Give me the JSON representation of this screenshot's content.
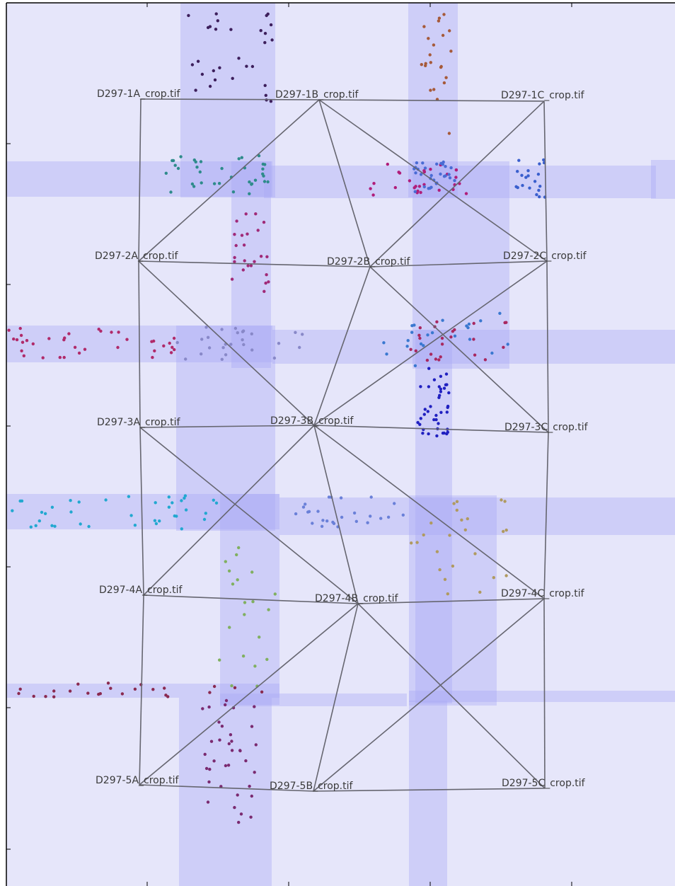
{
  "figure": {
    "background": "#e6e6fa",
    "band_color": "#a8a8f5",
    "edge_color": "#666670",
    "frame_color": "#000000"
  },
  "nodes": [
    {
      "id": "1A",
      "label": "D297-1A_crop.tif"
    },
    {
      "id": "1B",
      "label": "D297-1B_crop.tif"
    },
    {
      "id": "1C",
      "label": "D297-1C_crop.tif"
    },
    {
      "id": "2A",
      "label": "D297-2A_crop.tif"
    },
    {
      "id": "2B",
      "label": "D297-2B_crop.tif"
    },
    {
      "id": "2C",
      "label": "D297-2C_crop.tif"
    },
    {
      "id": "3A",
      "label": "D297-3A_crop.tif"
    },
    {
      "id": "3B",
      "label": "D297-3B_crop.tif"
    },
    {
      "id": "3C",
      "label": "D297-3C_crop.tif"
    },
    {
      "id": "4A",
      "label": "D297-4A_crop.tif"
    },
    {
      "id": "4B",
      "label": "D297-4B_crop.tif"
    },
    {
      "id": "4C",
      "label": "D297-4C_crop.tif"
    },
    {
      "id": "5A",
      "label": "D297-5A_crop.tif"
    },
    {
      "id": "5B",
      "label": "D297-5B_crop.tif"
    },
    {
      "id": "5C",
      "label": "D297-5C_crop.tif"
    }
  ],
  "edges": [
    [
      "1A",
      "1B"
    ],
    [
      "1B",
      "1C"
    ],
    [
      "1A",
      "2A"
    ],
    [
      "1C",
      "2C"
    ],
    [
      "1B",
      "2A"
    ],
    [
      "1B",
      "2B"
    ],
    [
      "1B",
      "2C"
    ],
    [
      "1C",
      "2B"
    ],
    [
      "2A",
      "2B"
    ],
    [
      "2B",
      "2C"
    ],
    [
      "2A",
      "3A"
    ],
    [
      "2C",
      "3C"
    ],
    [
      "2A",
      "3B"
    ],
    [
      "2B",
      "3B"
    ],
    [
      "2B",
      "3C"
    ],
    [
      "2C",
      "3B"
    ],
    [
      "3A",
      "3B"
    ],
    [
      "3B",
      "3C"
    ],
    [
      "3A",
      "4A"
    ],
    [
      "3C",
      "4C"
    ],
    [
      "3A",
      "4B"
    ],
    [
      "3B",
      "4A"
    ],
    [
      "3B",
      "4B"
    ],
    [
      "3B",
      "4C"
    ],
    [
      "4A",
      "4B"
    ],
    [
      "4B",
      "4C"
    ],
    [
      "4A",
      "5A"
    ],
    [
      "4C",
      "5C"
    ],
    [
      "4B",
      "5A"
    ],
    [
      "4B",
      "5B"
    ],
    [
      "4B",
      "5C"
    ],
    [
      "4C",
      "5B"
    ],
    [
      "5A",
      "5B"
    ],
    [
      "5B",
      "5C"
    ]
  ],
  "point_clusters": [
    {
      "color": "#3d1f5c",
      "count": 30
    },
    {
      "color": "#a65a3a",
      "count": 22
    },
    {
      "color": "#2e8b8b",
      "count": 36
    },
    {
      "color": "#b01d7a",
      "count": 28
    },
    {
      "color": "#4a6cd4",
      "count": 30
    },
    {
      "color": "#3a5fcd",
      "count": 20
    },
    {
      "color": "#a02a78",
      "count": 24
    },
    {
      "color": "#3a78d0",
      "count": 22
    },
    {
      "color": "#b02a6a",
      "count": 36
    },
    {
      "color": "#a82860",
      "count": 24
    },
    {
      "color": "#2020c0",
      "count": 40
    },
    {
      "color": "#8888c8",
      "count": 26
    },
    {
      "color": "#22a8d0",
      "count": 38
    },
    {
      "color": "#6a80d8",
      "count": 26
    },
    {
      "color": "#b09a60",
      "count": 24
    },
    {
      "color": "#80b060",
      "count": 20
    },
    {
      "color": "#8a2a50",
      "count": 24
    },
    {
      "color": "#7a2a70",
      "count": 36
    }
  ]
}
